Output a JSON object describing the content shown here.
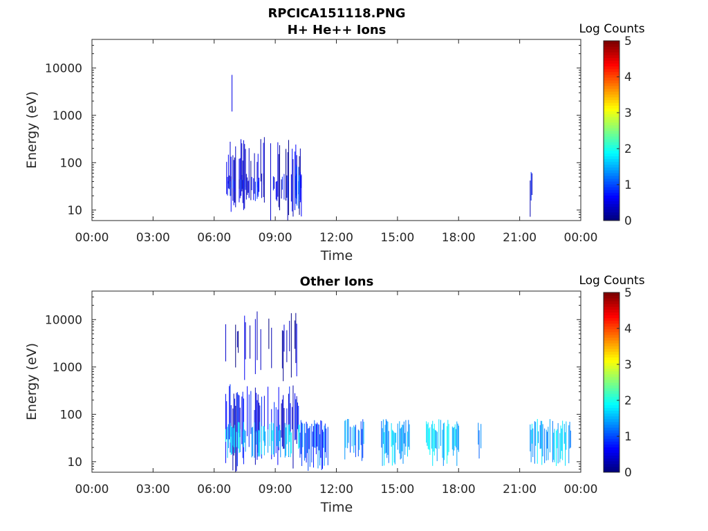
{
  "figure_title": "RPCICA151118.PNG",
  "colors": {
    "frame": "#262626",
    "colormap": [
      "#00007f",
      "#0000ff",
      "#0080ff",
      "#00ffff",
      "#80ff80",
      "#ffff00",
      "#ff8000",
      "#ff0000",
      "#7f0000"
    ]
  },
  "chart_data": [
    {
      "type": "heatmap",
      "title": "H+ He++ Ions",
      "xlabel": "Time",
      "ylabel": "Energy (eV)",
      "xlim": [
        0,
        24
      ],
      "x_tick_labels": [
        "00:00",
        "03:00",
        "06:00",
        "09:00",
        "12:00",
        "15:00",
        "18:00",
        "21:00",
        "00:00"
      ],
      "x_tick_values": [
        0,
        3,
        6,
        9,
        12,
        15,
        18,
        21,
        24
      ],
      "yscale": "log",
      "ylim": [
        6,
        40000
      ],
      "y_tick_labels": [
        "10",
        "100",
        "1000",
        "10000"
      ],
      "y_tick_values": [
        10,
        100,
        1000,
        10000
      ],
      "colorbar": {
        "label": "Log Counts",
        "range": [
          0,
          5
        ],
        "tick_labels": [
          "0",
          "1",
          "2",
          "3",
          "4",
          "5"
        ]
      },
      "blocks": [
        {
          "t0": 6.55,
          "t1": 10.3,
          "e0": 6,
          "e1": 350,
          "level": 0.35,
          "density": 0.45
        },
        {
          "t0": 6.55,
          "t1": 10.3,
          "e0": 15,
          "e1": 60,
          "level": 0.6,
          "density": 0.55
        },
        {
          "t0": 6.55,
          "t1": 7.0,
          "e0": 400,
          "e1": 20000,
          "level": 0.3,
          "density": 0.35
        },
        {
          "t0": 10.0,
          "t1": 10.3,
          "e0": 6,
          "e1": 120,
          "level": 0.8,
          "density": 0.9
        },
        {
          "t0": 21.5,
          "t1": 21.6,
          "e0": 6,
          "e1": 80,
          "level": 0.5,
          "density": 0.9
        }
      ]
    },
    {
      "type": "heatmap",
      "title": "Other Ions",
      "xlabel": "Time",
      "ylabel": "Energy (eV)",
      "xlim": [
        0,
        24
      ],
      "x_tick_labels": [
        "00:00",
        "03:00",
        "06:00",
        "09:00",
        "12:00",
        "15:00",
        "18:00",
        "21:00",
        "00:00"
      ],
      "x_tick_values": [
        0,
        3,
        6,
        9,
        12,
        15,
        18,
        21,
        24
      ],
      "yscale": "log",
      "ylim": [
        6,
        40000
      ],
      "y_tick_labels": [
        "10",
        "100",
        "1000",
        "10000"
      ],
      "y_tick_values": [
        10,
        100,
        1000,
        10000
      ],
      "colorbar": {
        "label": "Log Counts",
        "range": [
          0,
          5
        ],
        "tick_labels": [
          "0",
          "1",
          "2",
          "3",
          "4",
          "5"
        ]
      },
      "blocks": [
        {
          "t0": 6.55,
          "t1": 10.2,
          "e0": 6,
          "e1": 450,
          "level": 0.5,
          "density": 0.6
        },
        {
          "t0": 6.55,
          "t1": 10.2,
          "e0": 12,
          "e1": 70,
          "level": 1.6,
          "density": 0.55
        },
        {
          "t0": 6.55,
          "t1": 10.2,
          "e0": 500,
          "e1": 15000,
          "level": 0.2,
          "density": 0.25
        },
        {
          "t0": 10.2,
          "t1": 11.6,
          "e0": 6,
          "e1": 80,
          "level": 1.0,
          "density": 0.9
        },
        {
          "t0": 12.4,
          "t1": 13.4,
          "e0": 10,
          "e1": 80,
          "level": 1.3,
          "density": 0.75
        },
        {
          "t0": 14.2,
          "t1": 15.6,
          "e0": 8,
          "e1": 80,
          "level": 1.5,
          "density": 0.8
        },
        {
          "t0": 16.4,
          "t1": 18.0,
          "e0": 8,
          "e1": 80,
          "level": 1.6,
          "density": 0.8
        },
        {
          "t0": 18.95,
          "t1": 19.1,
          "e0": 8,
          "e1": 80,
          "level": 1.2,
          "density": 0.9
        },
        {
          "t0": 21.5,
          "t1": 23.5,
          "e0": 8,
          "e1": 80,
          "level": 1.5,
          "density": 0.8
        }
      ]
    }
  ]
}
